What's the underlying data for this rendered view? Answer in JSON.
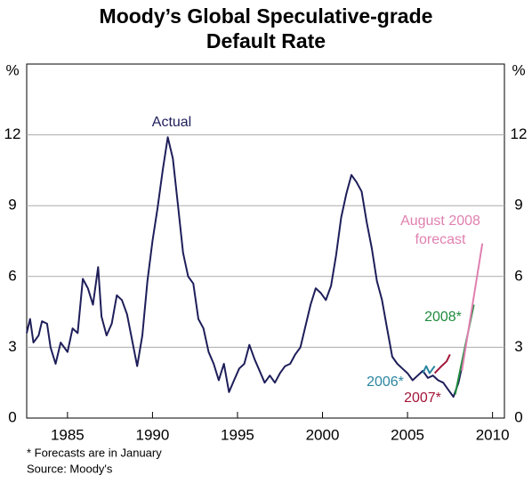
{
  "chart_data": {
    "type": "line",
    "title": [
      "Moody’s Global Speculative-grade",
      "Default Rate"
    ],
    "y_label": "%",
    "notes": [
      "*   Forecasts are in January",
      "Source: Moody's"
    ],
    "xlim": [
      1982.6,
      2010.7
    ],
    "xticks": [
      1985,
      1990,
      1995,
      2000,
      2005,
      2010
    ],
    "ylim": [
      0,
      15
    ],
    "yticks": [
      0,
      3,
      6,
      9,
      12
    ],
    "grid": true,
    "series": [
      {
        "name": "Actual",
        "color": "#1e1e5a",
        "x": [
          1982.6,
          1982.8,
          1983.0,
          1983.3,
          1983.5,
          1983.8,
          1984.0,
          1984.3,
          1984.6,
          1985.0,
          1985.3,
          1985.6,
          1985.9,
          1986.2,
          1986.5,
          1986.8,
          1987.0,
          1987.3,
          1987.6,
          1987.9,
          1988.2,
          1988.5,
          1988.8,
          1989.1,
          1989.4,
          1989.7,
          1990.0,
          1990.3,
          1990.6,
          1990.9,
          1991.2,
          1991.5,
          1991.8,
          1992.1,
          1992.4,
          1992.7,
          1993.0,
          1993.3,
          1993.6,
          1993.9,
          1994.2,
          1994.5,
          1994.8,
          1995.1,
          1995.4,
          1995.7,
          1996.0,
          1996.3,
          1996.6,
          1996.9,
          1997.2,
          1997.5,
          1997.8,
          1998.1,
          1998.4,
          1998.7,
          1999.0,
          1999.3,
          1999.6,
          1999.9,
          2000.2,
          2000.5,
          2000.8,
          2001.1,
          2001.4,
          2001.7,
          2002.0,
          2002.3,
          2002.6,
          2002.9,
          2003.2,
          2003.5,
          2003.8,
          2004.1,
          2004.4,
          2004.7,
          2005.0,
          2005.3,
          2005.6,
          2005.9,
          2006.2,
          2006.5,
          2006.8,
          2007.1,
          2007.4,
          2007.7,
          2008.0,
          2008.3
        ],
        "values": [
          3.6,
          4.2,
          3.2,
          3.5,
          4.1,
          4.0,
          3.0,
          2.3,
          3.2,
          2.8,
          3.8,
          3.6,
          5.9,
          5.5,
          4.8,
          6.4,
          4.3,
          3.5,
          4.0,
          5.2,
          5.0,
          4.4,
          3.3,
          2.2,
          3.5,
          5.8,
          7.5,
          8.9,
          10.5,
          11.9,
          11.0,
          9.0,
          7.0,
          6.0,
          5.7,
          4.2,
          3.8,
          2.8,
          2.3,
          1.6,
          2.3,
          1.1,
          1.6,
          2.1,
          2.3,
          3.1,
          2.5,
          2.0,
          1.5,
          1.8,
          1.5,
          1.9,
          2.2,
          2.3,
          2.7,
          3.0,
          3.9,
          4.8,
          5.5,
          5.3,
          5.0,
          5.6,
          6.9,
          8.5,
          9.5,
          10.3,
          10.0,
          9.6,
          8.3,
          7.2,
          5.8,
          5.0,
          3.8,
          2.6,
          2.3,
          2.1,
          1.9,
          1.6,
          1.8,
          2.0,
          1.7,
          1.8,
          1.6,
          1.5,
          1.2,
          0.9,
          1.5,
          2.5
        ]
      },
      {
        "name": "2006*",
        "color": "#2a86a0",
        "x": [
          2005.9,
          2006.1,
          2006.3,
          2006.6
        ],
        "values": [
          1.9,
          2.2,
          1.9,
          2.2
        ]
      },
      {
        "name": "2007*",
        "color": "#a3173a",
        "x": [
          2006.6,
          2007.0,
          2007.3,
          2007.5
        ],
        "values": [
          1.9,
          2.2,
          2.4,
          2.7
        ]
      },
      {
        "name": "2008*",
        "color": "#1f8a3e",
        "x": [
          2007.8,
          2008.9
        ],
        "values": [
          1.0,
          4.8
        ]
      },
      {
        "name": "August 2008 forecast",
        "color": "#e080b0",
        "x": [
          2008.2,
          2009.4
        ],
        "values": [
          2.0,
          7.4
        ]
      }
    ]
  }
}
